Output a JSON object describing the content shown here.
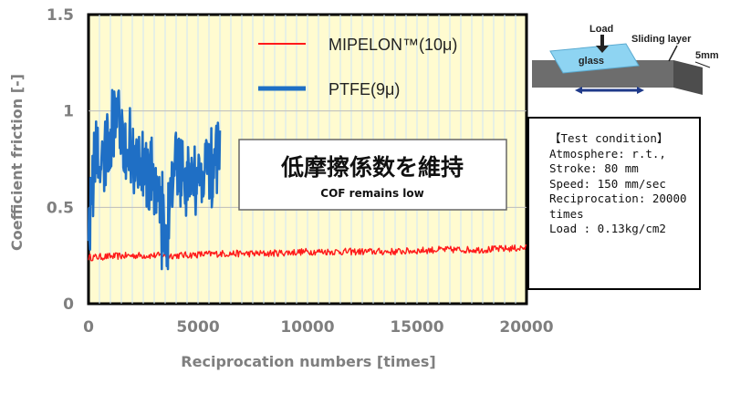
{
  "chart_data": {
    "type": "line",
    "title": "",
    "xlabel": "Reciprocation numbers [times]",
    "ylabel": "Coefficient friction [-]",
    "xlim": [
      0,
      20000
    ],
    "ylim": [
      0,
      1.5
    ],
    "x_ticks": [
      "0",
      "5000",
      "10000",
      "15000",
      "20000"
    ],
    "y_ticks": [
      "0",
      "0.5",
      "1",
      "1.5"
    ],
    "series": [
      {
        "name": "MIPELON™(10μ)",
        "color": "#ff1a1a",
        "x": [
          0,
          2000,
          4000,
          6000,
          8000,
          10000,
          12000,
          14000,
          16000,
          18000,
          20000
        ],
        "y": [
          0.24,
          0.25,
          0.25,
          0.26,
          0.26,
          0.27,
          0.27,
          0.27,
          0.28,
          0.28,
          0.29
        ],
        "noise": 0.018
      },
      {
        "name": "PTFE(9μ)",
        "color": "#1f6fc5",
        "x": [
          0,
          300,
          700,
          1000,
          1300,
          1600,
          2000,
          2400,
          2800,
          3100,
          3400,
          3700,
          4000,
          4400,
          4800,
          5200,
          5600,
          6000
        ],
        "y": [
          0.4,
          0.72,
          0.7,
          0.82,
          1.02,
          0.88,
          0.78,
          0.72,
          0.66,
          0.6,
          0.45,
          0.55,
          0.78,
          0.62,
          0.66,
          0.72,
          0.65,
          0.72
        ],
        "noise": 0.11
      }
    ],
    "legend": "top-center"
  },
  "callout": {
    "jp": "低摩擦係数を維持",
    "en": "COF remains low"
  },
  "diagram": {
    "load": "Load",
    "sliding_layer": "Sliding layer",
    "glass": "glass",
    "thickness": "5mm"
  },
  "test_condition": {
    "title": "【Test condition】",
    "lines": [
      "Atmosphere: r.t.,",
      "Stroke: 80 mm",
      "Speed: 150 mm/sec",
      "Reciprocation: 20000 times",
      "Load : 0.13kg/cm2"
    ]
  }
}
